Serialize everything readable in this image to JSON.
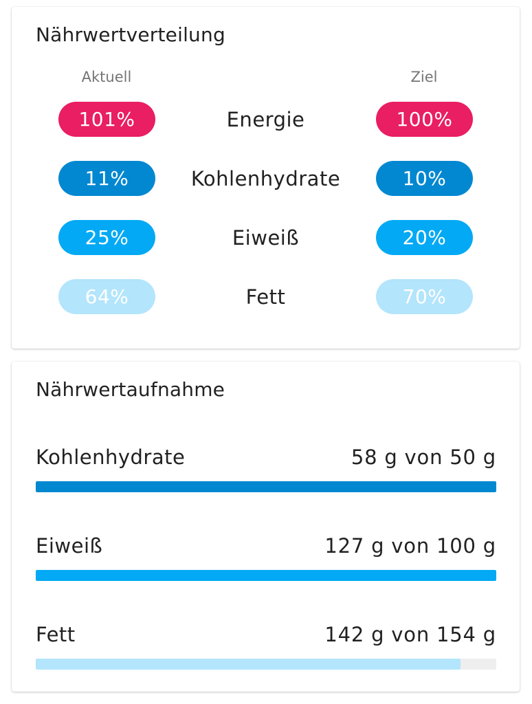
{
  "distribution": {
    "title": "Nährwertverteilung",
    "col_current": "Aktuell",
    "col_target": "Ziel",
    "rows": [
      {
        "label": "Energie",
        "current": "101%",
        "target": "100%",
        "color": "#E91E63",
        "text_color": "#ffffff"
      },
      {
        "label": "Kohlenhydrate",
        "current": "11%",
        "target": "10%",
        "color": "#0288D1",
        "text_color": "#ffffff"
      },
      {
        "label": "Eiweiß",
        "current": "25%",
        "target": "20%",
        "color": "#03A9F4",
        "text_color": "#ffffff"
      },
      {
        "label": "Fett",
        "current": "64%",
        "target": "70%",
        "color": "#B3E5FC",
        "text_color": "#ffffff"
      }
    ]
  },
  "intake": {
    "title": "Nährwertaufnahme",
    "rows": [
      {
        "label": "Kohlenhydrate",
        "amount": "58 g von 50 g",
        "progress": 1.0,
        "color": "#0288D1"
      },
      {
        "label": "Eiweiß",
        "amount": "127 g von 100 g",
        "progress": 1.0,
        "color": "#03A9F4"
      },
      {
        "label": "Fett",
        "amount": "142 g von 154 g",
        "progress": 0.922,
        "color": "#B3E5FC"
      }
    ]
  }
}
